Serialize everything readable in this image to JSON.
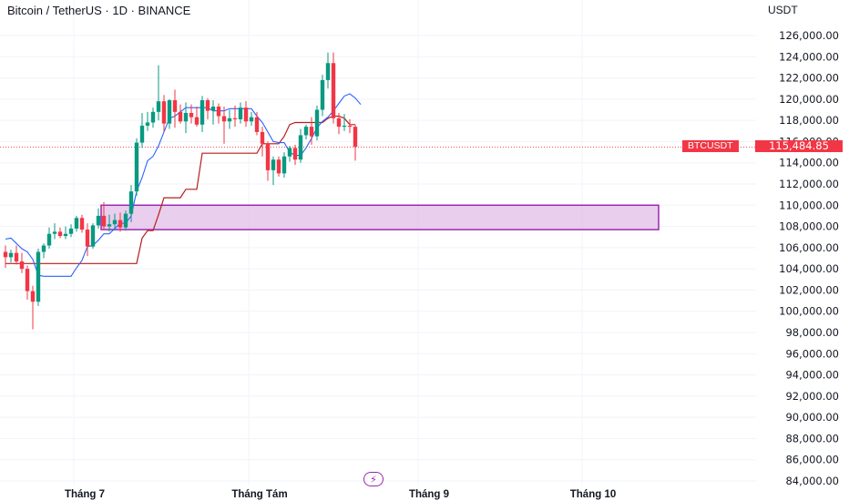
{
  "header": {
    "symbol_line": "Bitcoin / TetherUS · 1D · BINANCE",
    "currency": "USDT"
  },
  "price_tag": {
    "symbol": "BTCUSDT",
    "value": "115,484.85",
    "color": "#f23645"
  },
  "colors": {
    "up": "#089981",
    "down": "#f23645",
    "fast_line": "#2962ff",
    "slow_line": "#b71c1c",
    "zone_fill": "#e1bee7",
    "zone_border": "#9c27b0",
    "grid": "#f0f3fa"
  },
  "indicator_icon": "lightning-icon",
  "chart_data": {
    "type": "candlestick",
    "y_axis": {
      "ticks": [
        84000,
        86000,
        88000,
        90000,
        92000,
        94000,
        96000,
        98000,
        100000,
        102000,
        104000,
        106000,
        108000,
        110000,
        112000,
        114000,
        116000,
        118000,
        120000,
        122000,
        124000,
        126000
      ],
      "tick_labels": [
        "84,000.00",
        "86,000.00",
        "88,000.00",
        "90,000.00",
        "92,000.00",
        "94,000.00",
        "96,000.00",
        "98,000.00",
        "100,000.00",
        "102,000.00",
        "104,000.00",
        "106,000.00",
        "108,000.00",
        "110,000.00",
        "112,000.00",
        "114,000.00",
        "116,000.00",
        "118,000.00",
        "120,000.00",
        "122,000.00",
        "124,000.00",
        "126,000.00"
      ],
      "range": [
        83000,
        128000
      ],
      "position": "right"
    },
    "x_axis": {
      "labels": [
        "Tháng 7",
        "Tháng Tám",
        "Tháng 9",
        "Tháng 10"
      ],
      "label_days": [
        13,
        45,
        76,
        106
      ]
    },
    "days_total": 122,
    "last_price": 115484.85,
    "candles": [
      {
        "o": 105600,
        "h": 106200,
        "l": 104100,
        "c": 105100
      },
      {
        "o": 105100,
        "h": 105800,
        "l": 104600,
        "c": 105500
      },
      {
        "o": 105500,
        "h": 106200,
        "l": 104400,
        "c": 104700
      },
      {
        "o": 104700,
        "h": 105500,
        "l": 103600,
        "c": 104000
      },
      {
        "o": 104000,
        "h": 104300,
        "l": 101100,
        "c": 101900
      },
      {
        "o": 101900,
        "h": 102400,
        "l": 98300,
        "c": 100900
      },
      {
        "o": 100900,
        "h": 105900,
        "l": 100500,
        "c": 105600
      },
      {
        "o": 105600,
        "h": 106400,
        "l": 105000,
        "c": 106200
      },
      {
        "o": 106200,
        "h": 107900,
        "l": 105900,
        "c": 107300
      },
      {
        "o": 107300,
        "h": 108300,
        "l": 106800,
        "c": 107500
      },
      {
        "o": 107500,
        "h": 107900,
        "l": 106900,
        "c": 107100
      },
      {
        "o": 107100,
        "h": 108000,
        "l": 106800,
        "c": 107300
      },
      {
        "o": 107300,
        "h": 108200,
        "l": 107000,
        "c": 107800
      },
      {
        "o": 107800,
        "h": 109000,
        "l": 107500,
        "c": 108800
      },
      {
        "o": 108800,
        "h": 109100,
        "l": 107400,
        "c": 107700
      },
      {
        "o": 107700,
        "h": 108300,
        "l": 105200,
        "c": 106100
      },
      {
        "o": 106100,
        "h": 108300,
        "l": 105900,
        "c": 108100
      },
      {
        "o": 108100,
        "h": 109700,
        "l": 107800,
        "c": 109000
      },
      {
        "o": 109000,
        "h": 110300,
        "l": 107700,
        "c": 108000
      },
      {
        "o": 108000,
        "h": 109100,
        "l": 107500,
        "c": 108200
      },
      {
        "o": 108200,
        "h": 109200,
        "l": 107600,
        "c": 108600
      },
      {
        "o": 108600,
        "h": 109300,
        "l": 107500,
        "c": 107900
      },
      {
        "o": 107900,
        "h": 109500,
        "l": 107600,
        "c": 109200
      },
      {
        "o": 109200,
        "h": 111900,
        "l": 108400,
        "c": 111300
      },
      {
        "o": 111300,
        "h": 116300,
        "l": 110900,
        "c": 115900
      },
      {
        "o": 115900,
        "h": 118700,
        "l": 115400,
        "c": 117500
      },
      {
        "o": 117500,
        "h": 118800,
        "l": 117000,
        "c": 117800
      },
      {
        "o": 117800,
        "h": 119200,
        "l": 117300,
        "c": 118800
      },
      {
        "o": 118800,
        "h": 123200,
        "l": 118000,
        "c": 119800
      },
      {
        "o": 119800,
        "h": 120400,
        "l": 116900,
        "c": 117700
      },
      {
        "o": 117700,
        "h": 120000,
        "l": 117200,
        "c": 119900
      },
      {
        "o": 119900,
        "h": 120900,
        "l": 117300,
        "c": 118800
      },
      {
        "o": 118800,
        "h": 119500,
        "l": 117700,
        "c": 117900
      },
      {
        "o": 117900,
        "h": 119700,
        "l": 116800,
        "c": 118700
      },
      {
        "o": 118700,
        "h": 119500,
        "l": 117700,
        "c": 118300
      },
      {
        "o": 118300,
        "h": 119300,
        "l": 117400,
        "c": 117600
      },
      {
        "o": 117600,
        "h": 120300,
        "l": 116900,
        "c": 119900
      },
      {
        "o": 119900,
        "h": 120100,
        "l": 118100,
        "c": 118900
      },
      {
        "o": 118900,
        "h": 119900,
        "l": 117600,
        "c": 119300
      },
      {
        "o": 119300,
        "h": 119600,
        "l": 117700,
        "c": 118400
      },
      {
        "o": 118400,
        "h": 119300,
        "l": 115800,
        "c": 117900
      },
      {
        "o": 117900,
        "h": 119000,
        "l": 117200,
        "c": 118200
      },
      {
        "o": 118200,
        "h": 119400,
        "l": 117400,
        "c": 118100
      },
      {
        "o": 118100,
        "h": 119700,
        "l": 117700,
        "c": 119200
      },
      {
        "o": 119200,
        "h": 119800,
        "l": 117400,
        "c": 117900
      },
      {
        "o": 117900,
        "h": 118800,
        "l": 117500,
        "c": 118300
      },
      {
        "o": 118300,
        "h": 118800,
        "l": 116600,
        "c": 116900
      },
      {
        "o": 116900,
        "h": 117400,
        "l": 114600,
        "c": 115800
      },
      {
        "o": 115800,
        "h": 116000,
        "l": 112300,
        "c": 113300
      },
      {
        "o": 113300,
        "h": 114600,
        "l": 111900,
        "c": 114300
      },
      {
        "o": 114300,
        "h": 114600,
        "l": 112700,
        "c": 113000
      },
      {
        "o": 113000,
        "h": 115000,
        "l": 112600,
        "c": 114600
      },
      {
        "o": 114600,
        "h": 115600,
        "l": 114100,
        "c": 115400
      },
      {
        "o": 115400,
        "h": 115700,
        "l": 113800,
        "c": 114300
      },
      {
        "o": 114300,
        "h": 117200,
        "l": 114000,
        "c": 116600
      },
      {
        "o": 116600,
        "h": 117600,
        "l": 116200,
        "c": 117400
      },
      {
        "o": 117400,
        "h": 118300,
        "l": 115700,
        "c": 116500
      },
      {
        "o": 116500,
        "h": 119400,
        "l": 116100,
        "c": 119000
      },
      {
        "o": 119000,
        "h": 122300,
        "l": 118400,
        "c": 121800
      },
      {
        "o": 121800,
        "h": 124400,
        "l": 121000,
        "c": 123400
      },
      {
        "o": 123400,
        "h": 124400,
        "l": 117700,
        "c": 118200
      },
      {
        "o": 118200,
        "h": 118700,
        "l": 116700,
        "c": 117400
      },
      {
        "o": 117400,
        "h": 118600,
        "l": 117000,
        "c": 117500
      },
      {
        "o": 117500,
        "h": 118100,
        "l": 116800,
        "c": 117400
      },
      {
        "o": 117400,
        "h": 117600,
        "l": 114200,
        "c": 115500
      }
    ],
    "fast_line": [
      106800,
      106900,
      106400,
      105900,
      105600,
      104900,
      103400,
      103300,
      103300,
      103300,
      103300,
      103300,
      103300,
      104100,
      104800,
      106100,
      106200,
      106700,
      107300,
      107300,
      107800,
      108300,
      108300,
      109000,
      111300,
      112600,
      114200,
      114600,
      115600,
      116900,
      118200,
      118400,
      118800,
      119200,
      119200,
      119200,
      119200,
      119200,
      118900,
      118900,
      118900,
      119100,
      119100,
      119100,
      119100,
      119100,
      118400,
      117800,
      116900,
      116000,
      115900,
      115900,
      115000,
      114700,
      114700,
      115400,
      116300,
      117300,
      117900,
      118300,
      118900,
      119600,
      120300,
      120500,
      120100,
      119500
    ],
    "slow_line": [
      104500,
      104500,
      104500,
      104500,
      104500,
      104500,
      104500,
      104500,
      104500,
      104500,
      104500,
      104500,
      104500,
      104500,
      104500,
      104500,
      104500,
      104500,
      104500,
      104500,
      104500,
      104500,
      104500,
      104500,
      104500,
      106900,
      107600,
      107600,
      109100,
      110700,
      110700,
      110700,
      110700,
      111500,
      111500,
      111500,
      114900,
      114900,
      114900,
      114900,
      114900,
      114900,
      114900,
      114900,
      114900,
      114900,
      114900,
      115800,
      115800,
      115800,
      115800,
      116500,
      117600,
      117800,
      117800,
      117800,
      117800,
      117800,
      117800,
      118200,
      118400,
      118400,
      118200,
      117600,
      117600
    ],
    "zone": {
      "from_day": 18,
      "to_day": 120,
      "top": 110000,
      "bottom": 107700
    }
  }
}
